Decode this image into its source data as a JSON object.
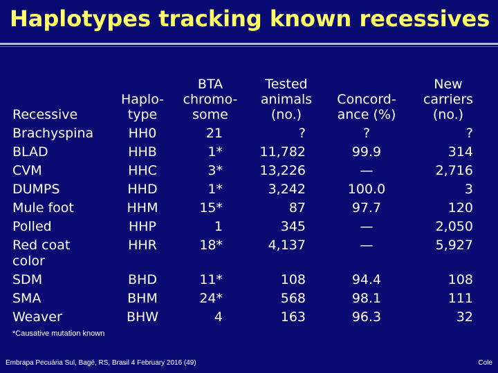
{
  "title": "Haplotypes tracking known recessives",
  "headers": {
    "recessive": "Recessive",
    "haplotype": "Haplo-\ntype",
    "bta": "BTA\nchromo-\nsome",
    "tested": "Tested\nanimals\n(no.)",
    "concordance": "Concord-\nance (%)",
    "carriers": "New\ncarriers\n(no.)"
  },
  "rows": [
    {
      "recessive": "Brachyspina",
      "haplotype": "HH0",
      "bta": "21",
      "tested": "?",
      "concordance": "?",
      "carriers": "?"
    },
    {
      "recessive": "BLAD",
      "haplotype": "HHB",
      "bta": "1*",
      "tested": "11,782",
      "concordance": "99.9",
      "carriers": "314"
    },
    {
      "recessive": "CVM",
      "haplotype": "HHC",
      "bta": "3*",
      "tested": "13,226",
      "concordance": "—",
      "carriers": "2,716"
    },
    {
      "recessive": "DUMPS",
      "haplotype": "HHD",
      "bta": "1*",
      "tested": "3,242",
      "concordance": "100.0",
      "carriers": "3"
    },
    {
      "recessive": "Mule foot",
      "haplotype": "HHM",
      "bta": "15*",
      "tested": "87",
      "concordance": "97.7",
      "carriers": "120"
    },
    {
      "recessive": "Polled",
      "haplotype": "HHP",
      "bta": "1",
      "tested": "345",
      "concordance": "—",
      "carriers": "2,050"
    },
    {
      "recessive": "Red coat",
      "haplotype": "HHR",
      "bta": "18*",
      "tested": "4,137",
      "concordance": "—",
      "carriers": "5,927"
    },
    {
      "recessive": "color",
      "haplotype": "",
      "bta": "",
      "tested": "",
      "concordance": "",
      "carriers": ""
    },
    {
      "recessive": "SDM",
      "haplotype": "BHD",
      "bta": "11*",
      "tested": "108",
      "concordance": "94.4",
      "carriers": "108"
    },
    {
      "recessive": "SMA",
      "haplotype": "BHM",
      "bta": "24*",
      "tested": "568",
      "concordance": "98.1",
      "carriers": "111"
    },
    {
      "recessive": "Weaver",
      "haplotype": "BHW",
      "bta": "4",
      "tested": "163",
      "concordance": "96.3",
      "carriers": "32"
    }
  ],
  "footnote": "*Causative mutation known",
  "footer_left": "Embrapa Pecuária Sul, Bagé, RS, Brasil 4 February 2016 (49)",
  "footer_right": "Cole",
  "colors": {
    "background": "#0a0a73",
    "title": "#ffff66",
    "text": "#ffffff"
  }
}
